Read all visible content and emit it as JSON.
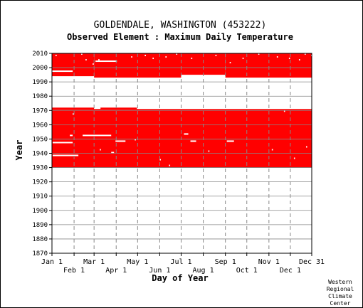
{
  "colors": {
    "data_fill": "#ff0000",
    "gap": "#ffffff",
    "grid": "#888888",
    "axis": "#000000",
    "background": "#ffffff"
  },
  "chart_data": {
    "type": "heatmap",
    "title": "GOLDENDALE, WASHINGTON   (453222)",
    "subtitle": "Observed Element : Maximum Daily Temperature",
    "xlabel": "Day of Year",
    "ylabel": "Year",
    "x_range": [
      1,
      365
    ],
    "ylim": [
      1870,
      2010
    ],
    "x_ticks_top_row": [
      {
        "day": 1,
        "label": "Jan 1"
      },
      {
        "day": 60,
        "label": "Mar 1"
      },
      {
        "day": 121,
        "label": "May 1"
      },
      {
        "day": 182,
        "label": "Jul 1"
      },
      {
        "day": 244,
        "label": "Sep 1"
      },
      {
        "day": 305,
        "label": "Nov 1"
      },
      {
        "day": 365,
        "label": "Dec 31"
      }
    ],
    "x_ticks_bottom_row": [
      {
        "day": 32,
        "label": "Feb 1"
      },
      {
        "day": 91,
        "label": "Apr 1"
      },
      {
        "day": 152,
        "label": "Jun 1"
      },
      {
        "day": 213,
        "label": "Aug 1"
      },
      {
        "day": 274,
        "label": "Oct 1"
      },
      {
        "day": 335,
        "label": "Dec 1"
      }
    ],
    "y_ticks": [
      1870,
      1880,
      1890,
      1900,
      1910,
      1920,
      1930,
      1940,
      1950,
      1960,
      1970,
      1980,
      1990,
      2000,
      2010
    ],
    "grid": true,
    "observed_blocks": [
      {
        "day_start": 1,
        "day_end": 365,
        "year_start": 1930,
        "year_end": 1971
      },
      {
        "day_start": 1,
        "day_end": 60,
        "year_start": 1971,
        "year_end": 1972
      },
      {
        "day_start": 69,
        "day_end": 120,
        "year_start": 1971,
        "year_end": 1972
      },
      {
        "day_start": 1,
        "day_end": 60,
        "year_start": 1994,
        "year_end": 2010
      },
      {
        "day_start": 60,
        "day_end": 182,
        "year_start": 1993,
        "year_end": 2010
      },
      {
        "day_start": 182,
        "day_end": 244,
        "year_start": 1995,
        "year_end": 2010
      },
      {
        "day_start": 244,
        "day_end": 365,
        "year_start": 1993,
        "year_end": 2010
      }
    ],
    "missing_segments": [
      {
        "day_start": 1,
        "day_end": 30,
        "year": 1997
      },
      {
        "day_start": 2,
        "day_end": 38,
        "year": 1938
      },
      {
        "day_start": 2,
        "day_end": 30,
        "year": 1947
      },
      {
        "day_start": 44,
        "day_end": 84,
        "year": 1952
      },
      {
        "day_start": 62,
        "day_end": 92,
        "year": 2004
      },
      {
        "day_start": 90,
        "day_end": 104,
        "year": 1948
      },
      {
        "day_start": 186,
        "day_end": 192,
        "year": 1953
      },
      {
        "day_start": 195,
        "day_end": 203,
        "year": 1948
      },
      {
        "day_start": 246,
        "day_end": 256,
        "year": 1948
      },
      {
        "day_start": 84,
        "day_end": 88,
        "year": 1940
      },
      {
        "day_start": 26,
        "day_end": 30,
        "year": 1952
      }
    ],
    "missing_days": [
      {
        "day": 6,
        "year": 2008
      },
      {
        "day": 42,
        "year": 2009
      },
      {
        "day": 48,
        "year": 2005
      },
      {
        "day": 58,
        "year": 2002
      },
      {
        "day": 66,
        "year": 2005
      },
      {
        "day": 112,
        "year": 2007
      },
      {
        "day": 131,
        "year": 2008
      },
      {
        "day": 142,
        "year": 2006
      },
      {
        "day": 160,
        "year": 2007
      },
      {
        "day": 175,
        "year": 2009
      },
      {
        "day": 196,
        "year": 2006
      },
      {
        "day": 230,
        "year": 2008
      },
      {
        "day": 250,
        "year": 2003
      },
      {
        "day": 268,
        "year": 2006
      },
      {
        "day": 290,
        "year": 2009
      },
      {
        "day": 316,
        "year": 2007
      },
      {
        "day": 333,
        "year": 2006
      },
      {
        "day": 347,
        "year": 2005
      },
      {
        "day": 355,
        "year": 2009
      },
      {
        "day": 364,
        "year": 2008
      },
      {
        "day": 30,
        "year": 1967
      },
      {
        "day": 117,
        "year": 1949
      },
      {
        "day": 152,
        "year": 1935
      },
      {
        "day": 165,
        "year": 1931
      },
      {
        "day": 309,
        "year": 1942
      },
      {
        "day": 340,
        "year": 1936
      },
      {
        "day": 357,
        "year": 1944
      },
      {
        "day": 68,
        "year": 1942
      },
      {
        "day": 220,
        "year": 1941
      },
      {
        "day": 326,
        "year": 1969
      }
    ]
  },
  "credit": [
    "Western",
    "Regional",
    "Climate",
    "Center"
  ]
}
